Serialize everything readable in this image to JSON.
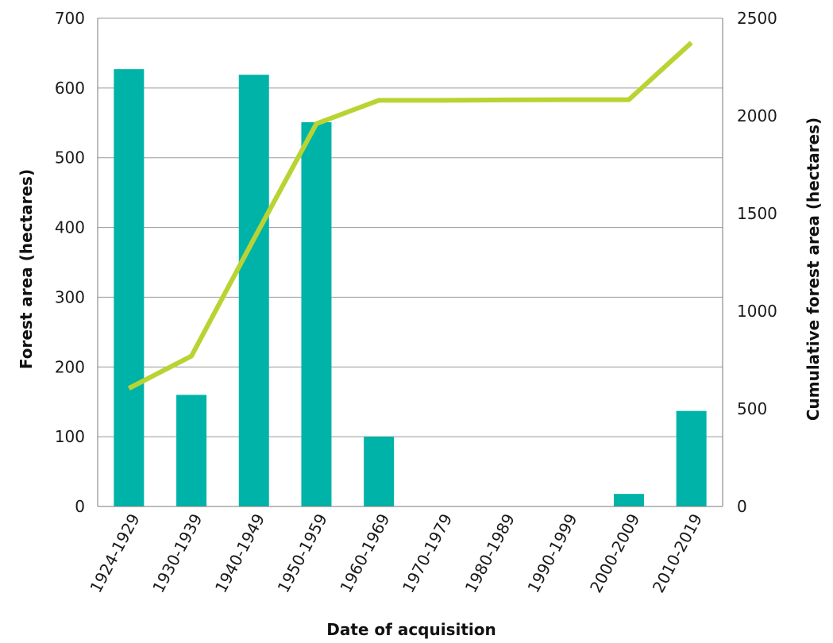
{
  "chart_data": {
    "type": "bar",
    "categories": [
      "1924-1929",
      "1930-1939",
      "1940-1949",
      "1950-1959",
      "1960-1969",
      "1970-1979",
      "1980-1989",
      "1990-1999",
      "2000-2009",
      "2010-2019"
    ],
    "series": [
      {
        "axis": "left",
        "type": "bar",
        "color": "#00b3a8",
        "values": [
          627,
          160,
          619,
          551,
          100,
          0,
          0,
          0,
          18,
          137
        ]
      },
      {
        "axis": "right",
        "type": "line",
        "color": "#b9d432",
        "values": [
          605,
          770,
          1370,
          1960,
          2080,
          2080,
          2082,
          2083,
          2083,
          2375
        ]
      }
    ],
    "xlabel": "Date of acquisition",
    "ylabel": "Forest area (hectares)",
    "y2label": "Cumulative forest area (hectares)",
    "ylim": [
      0,
      700
    ],
    "y2lim": [
      0,
      2500
    ],
    "yticks": [
      "0",
      "100",
      "200",
      "300",
      "400",
      "500",
      "600",
      "700"
    ],
    "y2ticks": [
      "0",
      "500",
      "1000",
      "1500",
      "2000",
      "2500"
    ],
    "grid": true
  }
}
